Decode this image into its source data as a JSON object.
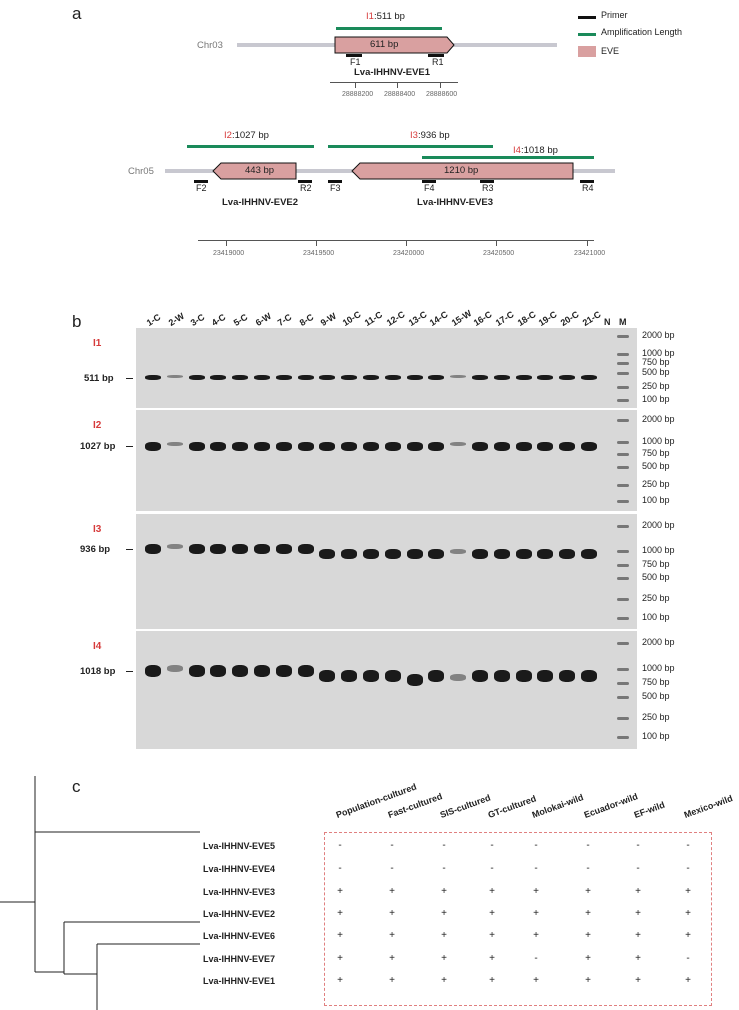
{
  "panel_a": {
    "letter": "a",
    "legend": {
      "primer": "Primer",
      "amplification": "Amplification Length",
      "eve": "EVE"
    },
    "colors": {
      "primer": "#111111",
      "amplification": "#1a8a5a",
      "eve": "#d9a0a0",
      "chromosome": "#c8c8d0",
      "interval_red": "#d63a3a"
    },
    "chr03": {
      "name": "Chr03",
      "i1_tag": "I1",
      "i1_length": ":511 bp",
      "eve_length": "611 bp",
      "f1": "F1",
      "r1": "R1",
      "eve_name": "Lva-IHHNV-EVE1",
      "ticks": [
        "28888200",
        "28888400",
        "28888600"
      ]
    },
    "chr05": {
      "name": "Chr05",
      "i2_tag": "I2",
      "i2_length": ":1027 bp",
      "i3_tag": "I3",
      "i3_length": ":936 bp",
      "i4_tag": "I4",
      "i4_length": ":1018 bp",
      "eve2_length": "443 bp",
      "eve3_length": "1210 bp",
      "primers": [
        "F2",
        "R2",
        "F3",
        "F4",
        "R3",
        "R4"
      ],
      "eve2_name": "Lva-IHHNV-EVE2",
      "eve3_name": "Lva-IHHNV-EVE3",
      "ticks": [
        "23419000",
        "23419500",
        "23420000",
        "23420500",
        "23421000"
      ]
    }
  },
  "panel_b": {
    "letter": "b",
    "lanes": [
      "1-C",
      "2-W",
      "3-C",
      "4-C",
      "5-C",
      "6-W",
      "7-C",
      "8-C",
      "9-W",
      "10-C",
      "11-C",
      "12-C",
      "13-C",
      "14-C",
      "15-W",
      "16-C",
      "17-C",
      "18-C",
      "19-C",
      "20-C",
      "21-C",
      "N",
      "M"
    ],
    "gels": [
      {
        "tag": "I1",
        "size": "511 bp",
        "ladder": [
          "2000 bp",
          "1000 bp",
          "750 bp",
          "500 bp",
          "250 bp",
          "100 bp"
        ]
      },
      {
        "tag": "I2",
        "size": "1027 bp",
        "ladder": [
          "2000 bp",
          "1000 bp",
          "750 bp",
          "500 bp",
          "250 bp",
          "100 bp"
        ]
      },
      {
        "tag": "I3",
        "size": "936 bp",
        "ladder": [
          "2000 bp",
          "1000 bp",
          "750 bp",
          "500 bp",
          "250 bp",
          "100 bp"
        ]
      },
      {
        "tag": "I4",
        "size": "1018 bp",
        "ladder": [
          "2000 bp",
          "1000 bp",
          "750 bp",
          "500 bp",
          "250 bp",
          "100 bp"
        ]
      }
    ]
  },
  "panel_c": {
    "letter": "c",
    "columns": [
      "Population-cultured",
      "Fast-cultured",
      "SIS-cultured",
      "GT-cultured",
      "Molokai-wild",
      "Ecuador-wild",
      "EF-wild",
      "Mexico-wild"
    ],
    "rows": [
      {
        "name": "Lva-IHHNV-EVE5",
        "values": [
          "-",
          "-",
          "-",
          "-",
          "-",
          "-",
          "-",
          "-"
        ]
      },
      {
        "name": "Lva-IHHNV-EVE4",
        "values": [
          "-",
          "-",
          "-",
          "-",
          "-",
          "-",
          "-",
          "-"
        ]
      },
      {
        "name": "Lva-IHHNV-EVE3",
        "values": [
          "+",
          "+",
          "+",
          "+",
          "+",
          "+",
          "+",
          "+"
        ]
      },
      {
        "name": "Lva-IHHNV-EVE2",
        "values": [
          "+",
          "+",
          "+",
          "+",
          "+",
          "+",
          "+",
          "+"
        ]
      },
      {
        "name": "Lva-IHHNV-EVE6",
        "values": [
          "+",
          "+",
          "+",
          "+",
          "+",
          "+",
          "+",
          "+"
        ]
      },
      {
        "name": "Lva-IHHNV-EVE7",
        "values": [
          "+",
          "+",
          "+",
          "+",
          "-",
          "+",
          "+",
          "-"
        ]
      },
      {
        "name": "Lva-IHHNV-EVE1",
        "values": [
          "+",
          "+",
          "+",
          "+",
          "+",
          "+",
          "+",
          "+"
        ]
      }
    ]
  }
}
